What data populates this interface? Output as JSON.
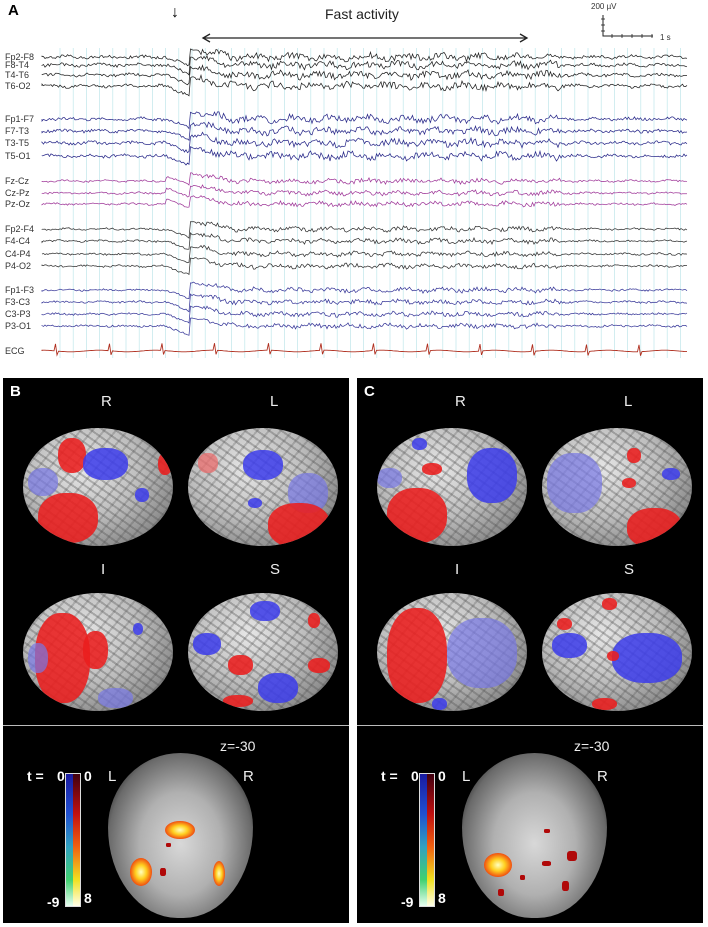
{
  "figure": {
    "panel_a": {
      "letter": "A",
      "annotation_arrow": "↓",
      "fast_activity_label": "Fast activity",
      "scale_bar": {
        "amplitude": "200 µV",
        "time": "1 s"
      },
      "channel_groups": [
        {
          "color": "#222222",
          "channels": [
            "Fp2-F8",
            "F8-T4",
            "T4-T6",
            "T6-O2"
          ]
        },
        {
          "color": "#2a2a8a",
          "channels": [
            "Fp1-F7",
            "F7-T3",
            "T3-T5",
            "T5-O1"
          ]
        },
        {
          "color": "#a03a9a",
          "channels": [
            "Fz-Cz",
            "Cz-Pz",
            "Pz-Oz"
          ]
        },
        {
          "color": "#333333",
          "channels": [
            "Fp2-F4",
            "F4-C4",
            "C4-P4",
            "P4-O2"
          ]
        },
        {
          "color": "#3a3a9a",
          "channels": [
            "Fp1-F3",
            "F3-C3",
            "C3-P3",
            "P3-O1"
          ]
        },
        {
          "color": "#b03020",
          "channels": [
            "ECG"
          ]
        }
      ]
    },
    "panel_b": {
      "letter": "B",
      "views": [
        "R",
        "L",
        "I",
        "S"
      ],
      "slice_label": "z=-30",
      "orientation_left": "L",
      "orientation_right": "R",
      "colorbar": {
        "label": "t =",
        "neg_top": "0",
        "neg_bottom": "-9",
        "pos_top": "0",
        "pos_bottom": "8"
      }
    },
    "panel_c": {
      "letter": "C",
      "views": [
        "R",
        "L",
        "I",
        "S"
      ],
      "slice_label": "z=-30",
      "orientation_left": "L",
      "orientation_right": "R",
      "colorbar": {
        "label": "t =",
        "neg_top": "0",
        "neg_bottom": "-9",
        "pos_top": "0",
        "pos_bottom": "8"
      }
    }
  },
  "colors": {
    "activation": "#e81e1e",
    "deactivation": "#3c3ceb",
    "grid_line": "#bfe6ea",
    "ecg": "#b03020"
  }
}
